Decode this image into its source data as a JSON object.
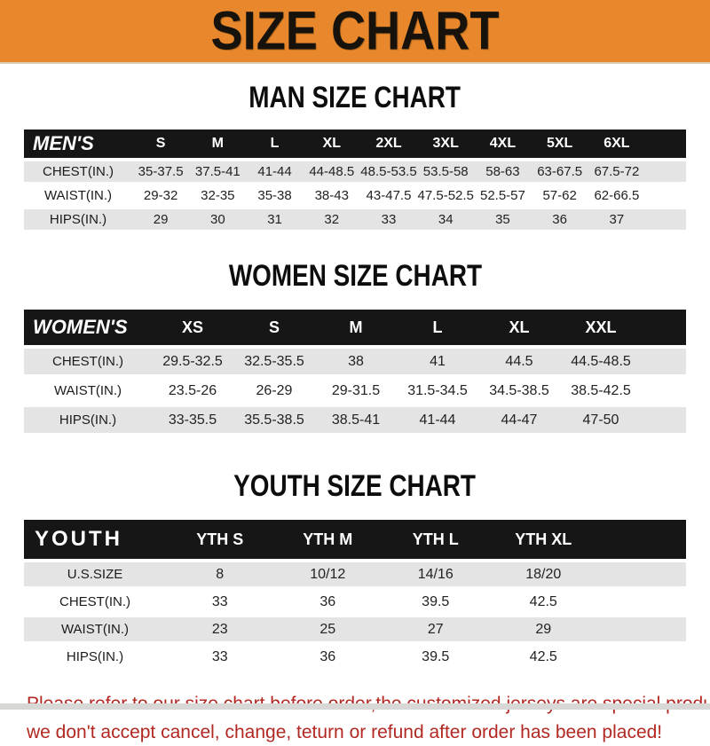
{
  "banner": {
    "title": "SIZE CHART",
    "bg_color": "#E8872B",
    "text_color": "#17130c"
  },
  "sections": [
    {
      "heading": "MAN SIZE CHART",
      "table": {
        "header_label": "MEN'S",
        "columns": [
          "S",
          "M",
          "L",
          "XL",
          "2XL",
          "3XL",
          "4XL",
          "5XL",
          "6XL"
        ],
        "rows": [
          {
            "label": "CHEST(IN.)",
            "values": [
              "35-37.5",
              "37.5-41",
              "41-44",
              "44-48.5",
              "48.5-53.5",
              "53.5-58",
              "58-63",
              "63-67.5",
              "67.5-72"
            ]
          },
          {
            "label": "WAIST(IN.)",
            "values": [
              "29-32",
              "32-35",
              "35-38",
              "38-43",
              "43-47.5",
              "47.5-52.5",
              "52.5-57",
              "57-62",
              "62-66.5"
            ]
          },
          {
            "label": "HIPS(IN.)",
            "values": [
              "29",
              "30",
              "31",
              "32",
              "33",
              "34",
              "35",
              "36",
              "37"
            ]
          }
        ]
      }
    },
    {
      "heading": "WOMEN SIZE CHART",
      "table": {
        "header_label": "WOMEN'S",
        "columns": [
          "XS",
          "S",
          "M",
          "L",
          "XL",
          "XXL"
        ],
        "rows": [
          {
            "label": "CHEST(IN.)",
            "values": [
              "29.5-32.5",
              "32.5-35.5",
              "38",
              "41",
              "44.5",
              "44.5-48.5"
            ]
          },
          {
            "label": "WAIST(IN.)",
            "values": [
              "23.5-26",
              "26-29",
              "29-31.5",
              "31.5-34.5",
              "34.5-38.5",
              "38.5-42.5"
            ]
          },
          {
            "label": "HIPS(IN.)",
            "values": [
              "33-35.5",
              "35.5-38.5",
              "38.5-41",
              "41-44",
              "44-47",
              "47-50"
            ]
          }
        ]
      }
    },
    {
      "heading": "YOUTH SIZE CHART",
      "table": {
        "header_label": "YOUTH",
        "columns": [
          "YTH S",
          "YTH M",
          "YTH L",
          "YTH XL"
        ],
        "rows": [
          {
            "label": "U.S.SIZE",
            "values": [
              "8",
              "10/12",
              "14/16",
              "18/20"
            ]
          },
          {
            "label": "CHEST(IN.)",
            "values": [
              "33",
              "36",
              "39.5",
              "42.5"
            ]
          },
          {
            "label": "WAIST(IN.)",
            "values": [
              "23",
              "25",
              "27",
              "29"
            ]
          },
          {
            "label": "HIPS(IN.)",
            "values": [
              "33",
              "36",
              "39.5",
              "42.5"
            ]
          }
        ]
      }
    }
  ],
  "footer": {
    "line1": "Please refer to our size chart before order,the customized jerseys are special products,",
    "line2": "we don't accept cancel, change, teturn or refund after order has been placed!",
    "color": "#b22822"
  },
  "colors": {
    "banner_orange": "#E8872B",
    "header_black": "#161616",
    "row_gray": "#e4e4e4",
    "row_white": "#ffffff",
    "disclaimer_red": "#b22822"
  }
}
